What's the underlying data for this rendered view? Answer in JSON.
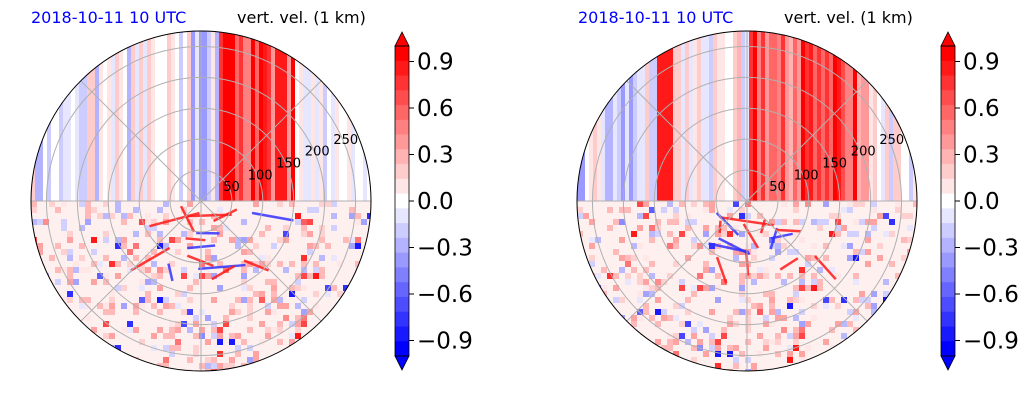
{
  "chart_data": [
    {
      "type": "heatmap",
      "projection": "polar",
      "title_left": "2018-10-11 10 UTC",
      "title_right": "vert. vel. (1 km)",
      "title_left_color": "#0000ff",
      "radial_ticks": [
        "50",
        "100",
        "150",
        "200",
        "250"
      ],
      "radial_tick_values": [
        50,
        100,
        150,
        200,
        250
      ],
      "r_max": 275,
      "grid": true,
      "colormap": "bwr",
      "colorbar": {
        "ticks": [
          "0.9",
          "0.6",
          "0.3",
          "0.0",
          "−0.3",
          "−0.6",
          "−0.9"
        ],
        "tick_values": [
          0.9,
          0.6,
          0.3,
          0.0,
          -0.3,
          -0.6,
          -0.9
        ],
        "range": [
          -1.0,
          1.0
        ],
        "levels": 21,
        "extend": "both"
      }
    },
    {
      "type": "heatmap",
      "projection": "polar",
      "title_left": "2018-10-11 10 UTC",
      "title_right": "vert. vel. (1 km)",
      "title_left_color": "#0000ff",
      "radial_ticks": [
        "50",
        "100",
        "150",
        "200",
        "250"
      ],
      "radial_tick_values": [
        50,
        100,
        150,
        200,
        250
      ],
      "r_max": 275,
      "grid": true,
      "colormap": "bwr",
      "colorbar": {
        "ticks": [
          "0.9",
          "0.6",
          "0.3",
          "0.0",
          "−0.3",
          "−0.6",
          "−0.9"
        ],
        "tick_values": [
          0.9,
          0.6,
          0.3,
          0.0,
          -0.3,
          -0.6,
          -0.9
        ],
        "range": [
          -1.0,
          1.0
        ],
        "levels": 21,
        "extend": "both"
      }
    }
  ]
}
